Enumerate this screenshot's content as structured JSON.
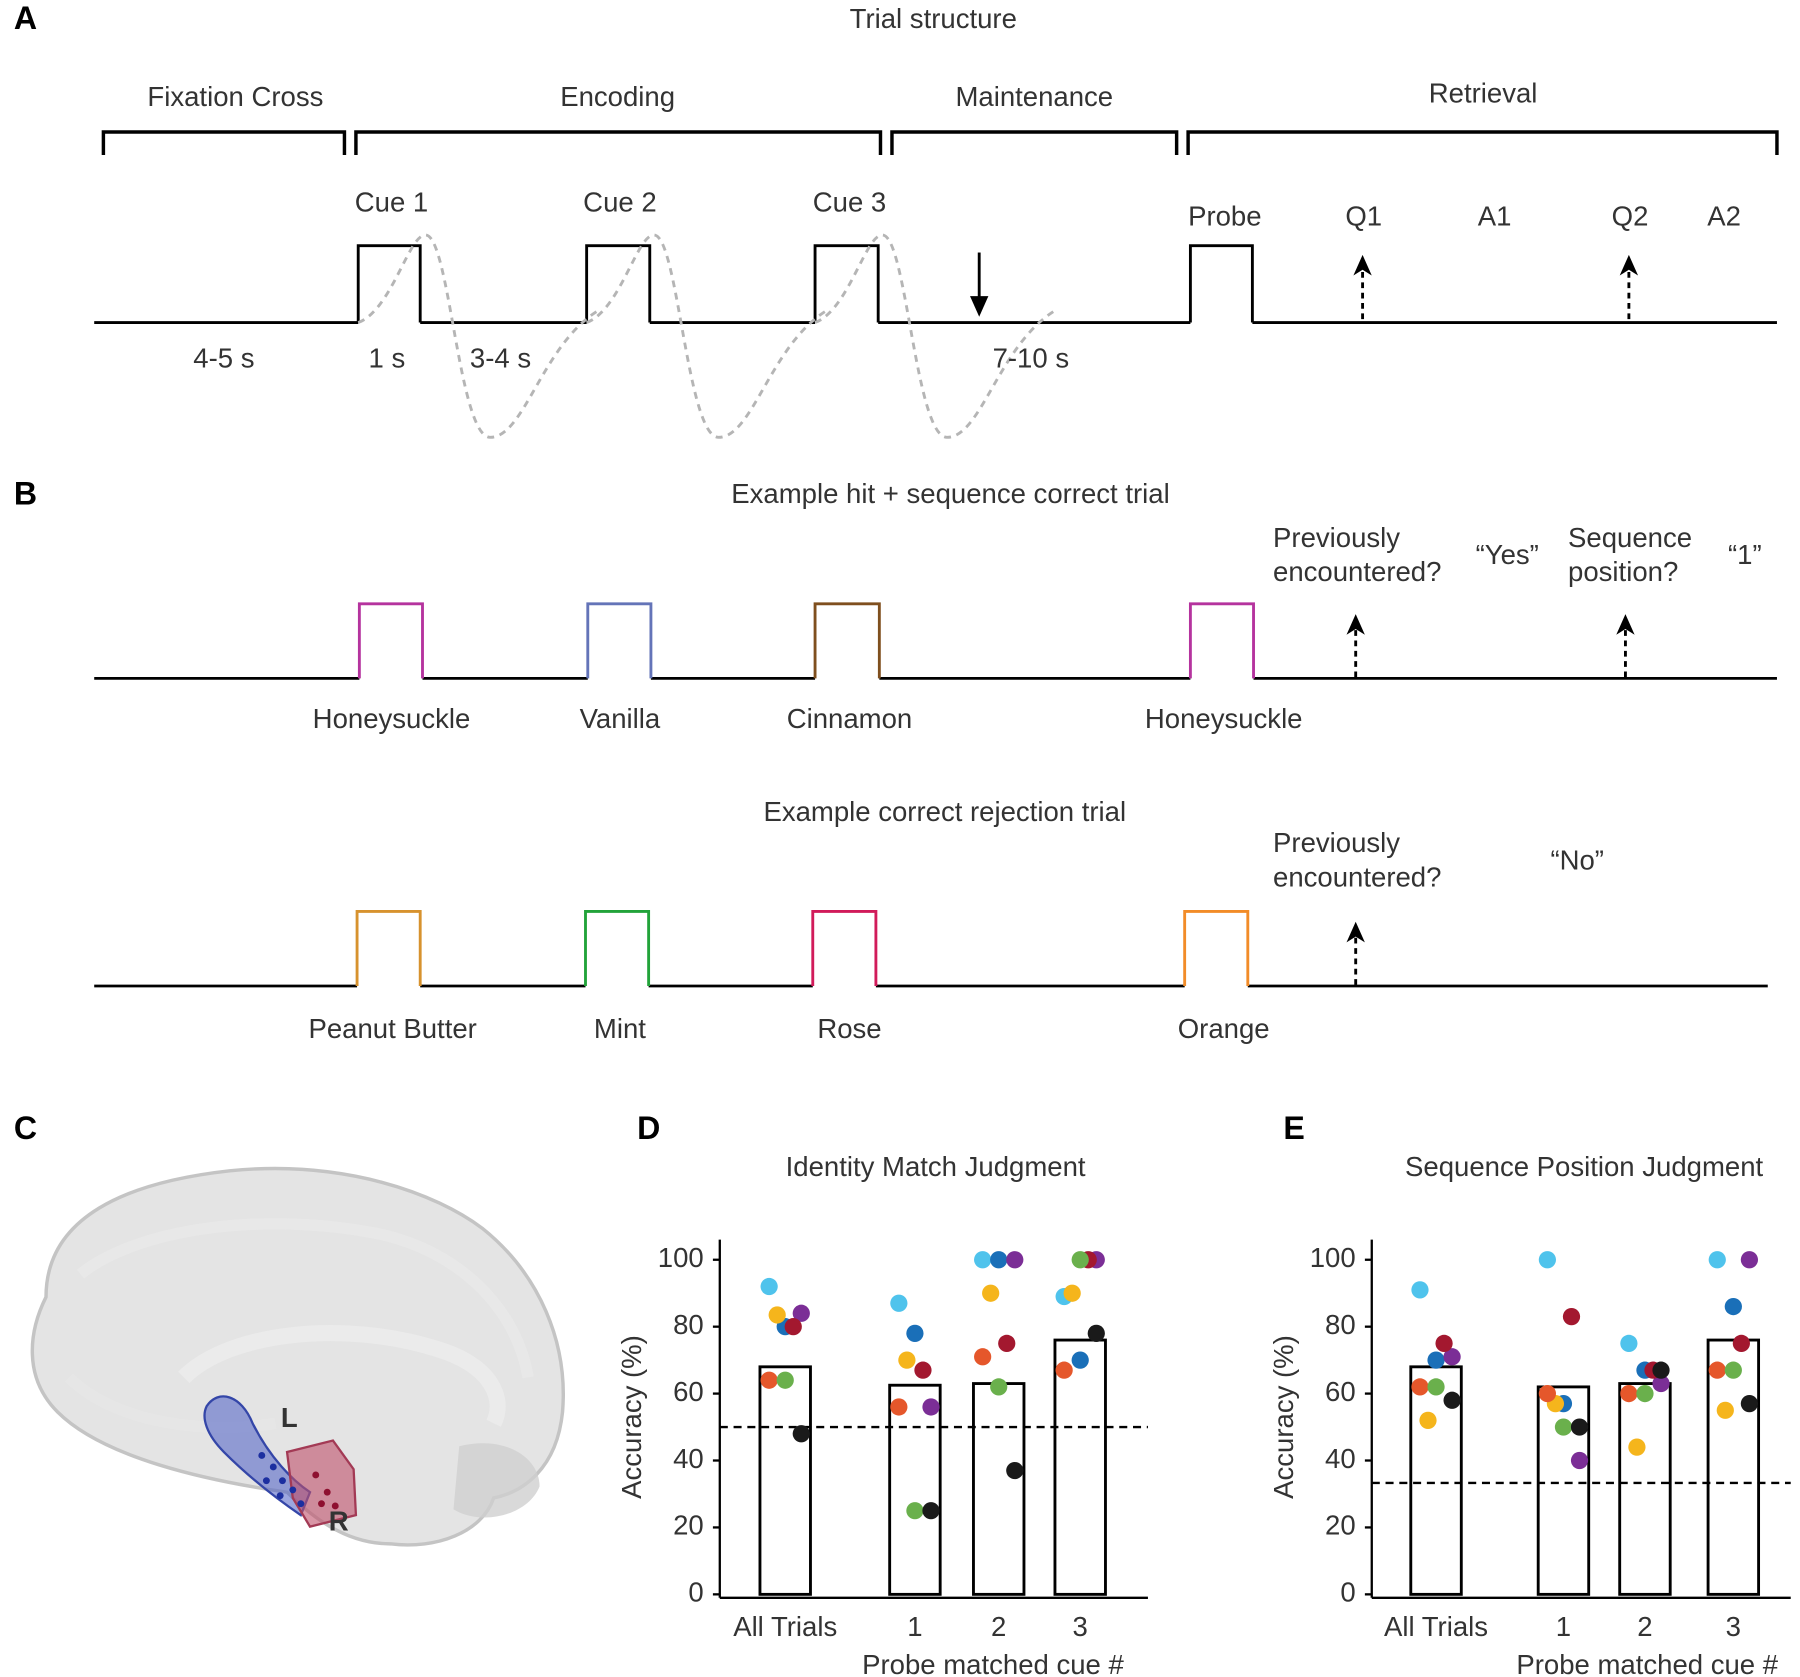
{
  "panel_labels": [
    "A",
    "B",
    "C",
    "D",
    "E"
  ],
  "panel_a": {
    "title": "Trial structure",
    "phases": [
      "Fixation Cross",
      "Encoding",
      "Maintenance",
      "Retrieval"
    ],
    "cues": [
      "Cue 1",
      "Cue 2",
      "Cue 3"
    ],
    "probe": "Probe",
    "responses": [
      "Q1",
      "A1",
      "Q2",
      "A2"
    ],
    "durations": [
      "4-5 s",
      "1 s",
      "3-4 s",
      "7-10 s"
    ]
  },
  "panel_b": {
    "trials": [
      {
        "title": "Example hit + sequence correct trial",
        "cues": [
          {
            "label": "Honeysuckle",
            "color": "#b5339e"
          },
          {
            "label": "Vanilla",
            "color": "#6474b8"
          },
          {
            "label": "Cinnamon",
            "color": "#7f4f1e"
          }
        ],
        "probe": {
          "label": "Honeysuckle",
          "color": "#b5339e"
        },
        "questions": [
          {
            "lines": [
              "Previously",
              "encountered?"
            ],
            "answer": "“Yes”"
          },
          {
            "lines": [
              "Sequence",
              "position?"
            ],
            "answer": "“1”"
          }
        ]
      },
      {
        "title": "Example correct rejection trial",
        "cues": [
          {
            "label": "Peanut Butter",
            "color": "#d7922e"
          },
          {
            "label": "Mint",
            "color": "#22a33a"
          },
          {
            "label": "Rose",
            "color": "#d11b5a"
          }
        ],
        "probe": {
          "label": "Orange",
          "color": "#f28c28"
        },
        "questions": [
          {
            "lines": [
              "Previously",
              "encountered?"
            ],
            "answer": "“No”"
          }
        ]
      }
    ]
  },
  "panel_c": {
    "labels": [
      "L",
      "R"
    ]
  },
  "chart_data": [
    {
      "type": "bar",
      "title": "Identity Match Judgment",
      "y_label": "Accuracy (%)",
      "x_label": "Probe matched cue #",
      "categories": [
        "All Trials",
        "1",
        "2",
        "3"
      ],
      "values": [
        68,
        62.5,
        63,
        76
      ],
      "chance_level": 50,
      "ylim": [
        0,
        106
      ],
      "yticks": [
        0,
        20,
        40,
        60,
        80,
        100
      ],
      "series": [
        {
          "color": "#4fc3ec",
          "values": [
            92,
            87,
            100,
            89
          ]
        },
        {
          "color": "#1a6fb8",
          "values": [
            80,
            78,
            100,
            70
          ]
        },
        {
          "color": "#7b2e96",
          "values": [
            84,
            56,
            100,
            100
          ]
        },
        {
          "color": "#f5b51c",
          "values": [
            83.5,
            70,
            90,
            90
          ]
        },
        {
          "color": "#a3182f",
          "values": [
            80,
            67,
            75,
            100
          ]
        },
        {
          "color": "#e5572b",
          "values": [
            64,
            56,
            71,
            67
          ]
        },
        {
          "color": "#6ab04c",
          "values": [
            64,
            25,
            62,
            100
          ]
        },
        {
          "color": "#1a1a1a",
          "values": [
            48,
            25,
            37,
            78
          ]
        }
      ]
    },
    {
      "type": "bar",
      "title": "Sequence Position Judgment",
      "y_label": "Accuracy (%)",
      "x_label": "Probe matched cue #",
      "categories": [
        "All Trials",
        "1",
        "2",
        "3"
      ],
      "values": [
        68,
        62,
        63,
        76
      ],
      "chance_level": 33.3,
      "ylim": [
        0,
        106
      ],
      "yticks": [
        0,
        20,
        40,
        60,
        80,
        100
      ],
      "series": [
        {
          "color": "#4fc3ec",
          "values": [
            91,
            100,
            75,
            100
          ]
        },
        {
          "color": "#1a6fb8",
          "values": [
            70,
            57,
            67,
            86
          ]
        },
        {
          "color": "#7b2e96",
          "values": [
            71,
            40,
            63,
            100
          ]
        },
        {
          "color": "#f5b51c",
          "values": [
            52,
            57,
            44,
            55
          ]
        },
        {
          "color": "#a3182f",
          "values": [
            75,
            83,
            67,
            75
          ]
        },
        {
          "color": "#e5572b",
          "values": [
            62,
            60,
            60,
            67
          ]
        },
        {
          "color": "#6ab04c",
          "values": [
            62,
            50,
            60,
            67
          ]
        },
        {
          "color": "#1a1a1a",
          "values": [
            58,
            50,
            67,
            57
          ]
        }
      ]
    }
  ]
}
